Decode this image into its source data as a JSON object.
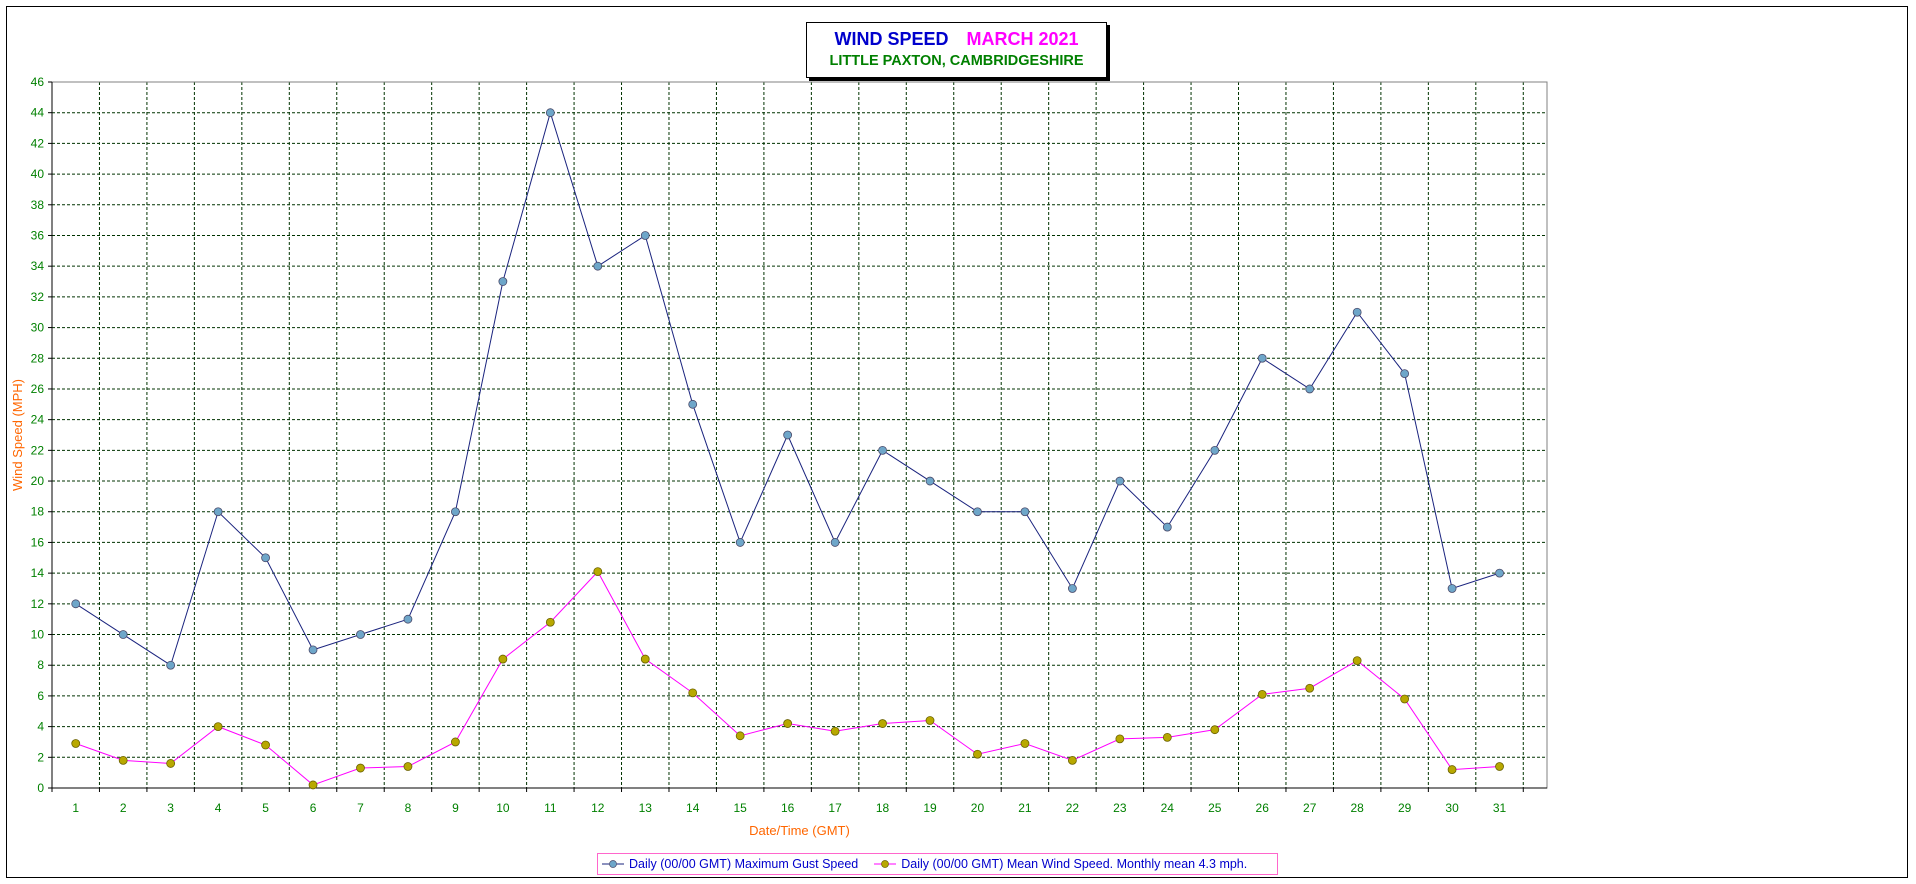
{
  "chart_data": {
    "type": "line",
    "title": "WIND SPEED",
    "title_date": "MARCH 2021",
    "subtitle": "LITTLE PAXTON, CAMBRIDGESHIRE",
    "xlabel": "Date/Time (GMT)",
    "ylabel": "Wind Speed (MPH)",
    "ylim": [
      0,
      46
    ],
    "ytick_step": 2,
    "grid": true,
    "legend_position": "bottom",
    "x": [
      1,
      2,
      3,
      4,
      5,
      6,
      7,
      8,
      9,
      10,
      11,
      12,
      13,
      14,
      15,
      16,
      17,
      18,
      19,
      20,
      21,
      22,
      23,
      24,
      25,
      26,
      27,
      28,
      29,
      30,
      31
    ],
    "series": [
      {
        "name": "Daily (00/00 GMT) Maximum Gust Speed",
        "line_color": "#1a237e",
        "marker_color": "#6ea6c9",
        "values": [
          12,
          10,
          8,
          18,
          15,
          9,
          10,
          11,
          18,
          33,
          44,
          34,
          36,
          25,
          16,
          23,
          16,
          22,
          20,
          18,
          18,
          13,
          20,
          17,
          22,
          28,
          26,
          31,
          27,
          13,
          14
        ]
      },
      {
        "name": "Daily (00/00 GMT) Mean Wind Speed. Monthly mean 4.3 mph.",
        "line_color": "#ff00ff",
        "marker_color": "#b8a800",
        "values": [
          2.9,
          1.8,
          1.6,
          4.0,
          2.8,
          0.2,
          1.3,
          1.4,
          3.0,
          8.4,
          10.8,
          14.1,
          8.4,
          6.2,
          3.4,
          4.2,
          3.7,
          4.2,
          4.4,
          2.2,
          2.9,
          1.8,
          3.2,
          3.3,
          3.8,
          6.1,
          6.5,
          8.3,
          5.8,
          1.2,
          1.4
        ]
      }
    ]
  }
}
